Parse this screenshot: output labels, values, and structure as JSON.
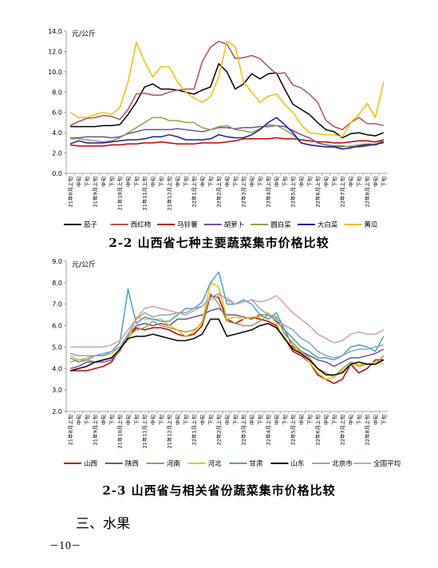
{
  "charts_meta": {
    "chart1_caption": "2-2 山西省七种主要蔬菜集市价格比较",
    "chart2_caption": "2-3 山西省与相关省份蔬菜集市价格比较"
  },
  "section_heading": "三、水果",
  "page_number": "－10－",
  "chart_data": [
    {
      "type": "line",
      "title": "",
      "ylabel": "元/公斤",
      "ylim": [
        0,
        14
      ],
      "yticks": [
        "0.0",
        "2.0",
        "4.0",
        "6.0",
        "8.0",
        "10.0",
        "12.0",
        "14.0"
      ],
      "x_tick_labels": [
        "21年8月上旬",
        "中旬",
        "下旬",
        "21年9月上旬",
        "中旬",
        "下旬",
        "21年10月上旬",
        "中旬",
        "下旬",
        "21年11月上旬",
        "中旬",
        "下旬",
        "21年12月上旬",
        "中旬",
        "下旬",
        "22年1月上旬",
        "中旬",
        "下旬",
        "22年2月上旬",
        "中旬",
        "下旬",
        "22年3月上旬",
        "中旬",
        "下旬",
        "22年4月上旬",
        "中旬",
        "下旬",
        "22年5月上旬",
        "中旬",
        "下旬",
        "22年6月上旬",
        "中旬",
        "下旬",
        "22年7月上旬",
        "中旬",
        "下旬",
        "22年8月上旬",
        "中旬",
        "下旬"
      ],
      "legend_position": "bottom",
      "series": [
        {
          "name": "茄子",
          "color": "#000000",
          "values": [
            4.6,
            4.6,
            4.6,
            4.6,
            4.7,
            4.7,
            4.8,
            5.8,
            7.0,
            8.5,
            8.8,
            8.3,
            8.3,
            8.2,
            8.0,
            7.8,
            8.2,
            8.5,
            10.8,
            10.0,
            8.3,
            8.8,
            9.8,
            9.3,
            9.8,
            9.9,
            8.3,
            6.8,
            6.3,
            5.8,
            5.0,
            4.3,
            4.1,
            3.5,
            3.9,
            4.0,
            3.8,
            3.7,
            4.0
          ]
        },
        {
          "name": "西红柿",
          "color": "#b05050",
          "values": [
            4.7,
            5.1,
            5.4,
            5.5,
            5.7,
            5.6,
            5.3,
            6.3,
            7.8,
            7.9,
            7.7,
            7.7,
            8.0,
            8.2,
            8.3,
            8.3,
            11.0,
            12.4,
            13.0,
            12.7,
            11.3,
            11.4,
            11.6,
            11.3,
            10.5,
            9.8,
            9.9,
            8.7,
            8.4,
            7.8,
            7.0,
            5.2,
            4.6,
            4.3,
            5.0,
            5.5,
            4.9,
            4.9,
            4.7
          ]
        },
        {
          "name": "马铃薯",
          "color": "#c00000",
          "values": [
            2.8,
            2.7,
            2.7,
            2.7,
            2.7,
            2.8,
            2.8,
            2.9,
            2.9,
            3.0,
            3.0,
            3.1,
            3.0,
            2.9,
            2.9,
            2.9,
            3.0,
            3.0,
            3.0,
            3.1,
            3.2,
            3.4,
            3.4,
            3.4,
            3.4,
            3.5,
            3.4,
            3.4,
            3.3,
            3.2,
            3.1,
            3.1,
            3.0,
            3.0,
            3.1,
            3.2,
            3.2,
            3.1,
            3.3
          ]
        },
        {
          "name": "胡萝卜",
          "color": "#7050a0",
          "values": [
            3.5,
            3.5,
            3.6,
            3.6,
            3.6,
            3.5,
            3.6,
            3.9,
            4.1,
            4.3,
            4.3,
            4.3,
            4.3,
            4.4,
            4.3,
            4.2,
            4.1,
            4.3,
            4.5,
            4.5,
            4.4,
            4.5,
            4.5,
            4.6,
            4.6,
            4.7,
            4.6,
            4.2,
            3.8,
            3.5,
            3.0,
            2.8,
            2.7,
            2.7,
            2.6,
            2.6,
            2.7,
            2.9,
            3.0
          ]
        },
        {
          "name": "圆白菜",
          "color": "#90a050",
          "values": [
            3.4,
            3.4,
            3.3,
            3.2,
            3.1,
            3.2,
            3.5,
            4.0,
            4.5,
            5.0,
            5.5,
            5.5,
            5.2,
            5.2,
            5.0,
            5.0,
            4.5,
            4.3,
            4.6,
            4.7,
            4.3,
            4.2,
            4.0,
            4.4,
            4.8,
            4.7,
            4.3,
            3.8,
            3.0,
            2.8,
            2.7,
            2.6,
            2.6,
            2.6,
            2.7,
            2.8,
            2.9,
            2.9,
            3.2
          ]
        },
        {
          "name": "大白菜",
          "color": "#1a1aa0",
          "values": [
            2.9,
            3.2,
            3.0,
            3.0,
            3.0,
            3.1,
            3.2,
            3.3,
            3.3,
            3.4,
            3.6,
            3.6,
            3.8,
            3.6,
            3.3,
            3.3,
            3.3,
            3.4,
            3.8,
            3.6,
            3.5,
            3.5,
            3.8,
            4.3,
            5.0,
            5.5,
            4.8,
            4.0,
            3.0,
            2.8,
            2.7,
            2.6,
            2.6,
            2.4,
            2.5,
            2.7,
            2.8,
            2.8,
            3.1
          ]
        },
        {
          "name": "黄瓜",
          "color": "#f0c000",
          "values": [
            6.0,
            5.5,
            5.5,
            5.8,
            6.0,
            5.8,
            6.5,
            9.0,
            12.9,
            11.0,
            9.5,
            10.5,
            10.5,
            9.0,
            8.0,
            7.4,
            7.0,
            7.5,
            9.5,
            13.0,
            12.5,
            9.0,
            8.0,
            7.0,
            7.6,
            7.8,
            6.8,
            6.0,
            4.8,
            4.0,
            3.9,
            3.8,
            3.8,
            3.6,
            5.0,
            5.8,
            6.9,
            5.5,
            9.0
          ]
        }
      ]
    },
    {
      "type": "line",
      "title": "",
      "ylabel": "元/公斤",
      "ylim": [
        2,
        9
      ],
      "yticks": [
        "2.0",
        "3.0",
        "4.0",
        "5.0",
        "6.0",
        "7.0",
        "8.0",
        "9.0"
      ],
      "x_tick_labels": [
        "21年8月上旬",
        "中旬",
        "下旬",
        "21年9月上旬",
        "中旬",
        "下旬",
        "21年10月上旬",
        "中旬",
        "下旬",
        "21年11月上旬",
        "中旬",
        "下旬",
        "21年12月上旬",
        "中旬",
        "下旬",
        "22年1月上旬",
        "中旬",
        "下旬",
        "22年2月上旬",
        "中旬",
        "下旬",
        "22年3月上旬",
        "中旬",
        "下旬",
        "22年4月上旬",
        "中旬",
        "下旬",
        "22年5月上旬",
        "中旬",
        "下旬",
        "22年6月上旬",
        "中旬",
        "下旬",
        "22年7月上旬",
        "中旬",
        "下旬",
        "22年8月上旬",
        "中旬",
        "下旬"
      ],
      "legend_position": "bottom",
      "series": [
        {
          "name": "山西",
          "color": "#c00000",
          "values": [
            3.9,
            3.9,
            3.9,
            4.0,
            4.1,
            4.3,
            4.9,
            5.5,
            5.9,
            5.8,
            5.9,
            5.9,
            5.8,
            5.6,
            5.5,
            5.6,
            6.0,
            7.4,
            7.3,
            6.3,
            6.1,
            6.3,
            6.4,
            6.3,
            6.2,
            6.0,
            5.4,
            4.8,
            4.6,
            4.3,
            3.7,
            3.5,
            3.3,
            3.5,
            4.2,
            3.8,
            4.0,
            4.4,
            4.4
          ]
        },
        {
          "name": "陕西",
          "color": "#7050a0",
          "values": [
            4.0,
            4.1,
            4.3,
            4.3,
            4.3,
            4.4,
            4.8,
            5.5,
            6.0,
            6.1,
            6.0,
            6.1,
            6.0,
            6.3,
            6.3,
            6.4,
            6.5,
            6.7,
            6.8,
            6.5,
            6.5,
            6.4,
            6.3,
            6.5,
            6.5,
            6.2,
            5.8,
            5.0,
            4.8,
            4.6,
            4.4,
            4.3,
            4.1,
            4.3,
            4.5,
            4.5,
            4.6,
            4.7,
            4.9
          ]
        },
        {
          "name": "河南",
          "color": "#90a050",
          "values": [
            4.3,
            4.4,
            4.4,
            4.3,
            4.4,
            4.5,
            4.8,
            5.5,
            5.8,
            5.9,
            6.2,
            6.0,
            5.9,
            5.8,
            5.7,
            5.8,
            6.1,
            7.5,
            7.0,
            6.2,
            6.1,
            6.0,
            6.0,
            6.2,
            6.5,
            6.4,
            5.6,
            5.2,
            4.8,
            4.5,
            4.0,
            3.8,
            3.6,
            4.0,
            4.3,
            4.1,
            4.2,
            4.2,
            4.6
          ]
        },
        {
          "name": "河北",
          "color": "#f0c000",
          "values": [
            4.6,
            4.4,
            4.5,
            4.6,
            4.6,
            4.7,
            5.0,
            5.3,
            6.4,
            6.3,
            6.3,
            6.3,
            6.0,
            5.8,
            5.5,
            5.7,
            6.2,
            8.0,
            7.8,
            6.3,
            6.4,
            6.3,
            6.4,
            6.4,
            6.6,
            6.1,
            5.3,
            5.1,
            4.7,
            4.3,
            3.8,
            3.5,
            3.6,
            3.9,
            4.2,
            4.2,
            4.2,
            4.3,
            4.2
          ]
        },
        {
          "name": "甘肃",
          "color": "#4ba0c8",
          "values": [
            4.5,
            4.3,
            4.4,
            4.6,
            4.6,
            4.8,
            5.2,
            7.7,
            6.1,
            6.4,
            6.3,
            6.2,
            6.2,
            6.5,
            6.8,
            6.8,
            7.1,
            8.0,
            8.5,
            7.0,
            7.0,
            7.2,
            7.0,
            6.5,
            6.3,
            6.6,
            5.8,
            5.4,
            5.0,
            4.8,
            4.5,
            4.5,
            4.4,
            4.6,
            5.0,
            5.1,
            5.0,
            4.8,
            5.5
          ]
        },
        {
          "name": "山东",
          "color": "#000000",
          "values": [
            3.9,
            4.0,
            4.1,
            4.3,
            4.4,
            4.5,
            4.9,
            5.4,
            5.5,
            5.5,
            5.6,
            5.5,
            5.4,
            5.3,
            5.3,
            5.4,
            5.6,
            6.3,
            6.3,
            5.5,
            5.6,
            5.7,
            5.8,
            6.0,
            6.1,
            5.9,
            5.4,
            4.9,
            4.7,
            4.4,
            4.0,
            3.7,
            3.7,
            3.8,
            4.2,
            4.3,
            4.2,
            4.2,
            4.4
          ]
        },
        {
          "name": "北京市",
          "color": "#8aa4c8",
          "values": [
            4.7,
            4.6,
            4.6,
            4.6,
            4.7,
            4.8,
            5.0,
            5.6,
            6.3,
            6.6,
            6.4,
            6.5,
            6.5,
            6.6,
            6.6,
            6.8,
            6.9,
            7.3,
            7.5,
            7.2,
            7.0,
            7.1,
            7.2,
            6.8,
            6.5,
            6.3,
            6.0,
            5.8,
            5.4,
            5.2,
            4.8,
            4.6,
            4.5,
            4.6,
            4.8,
            4.9,
            4.9,
            5.0,
            5.1
          ]
        },
        {
          "name": "全国平均",
          "color": "#d4a0a0",
          "values": [
            5.0,
            5.0,
            5.0,
            5.0,
            5.0,
            5.1,
            5.3,
            5.8,
            6.3,
            6.8,
            6.9,
            6.8,
            6.7,
            6.6,
            6.5,
            6.7,
            6.9,
            7.2,
            7.4,
            7.3,
            7.0,
            7.1,
            7.2,
            7.1,
            7.2,
            7.4,
            7.0,
            6.6,
            6.3,
            6.0,
            5.6,
            5.4,
            5.2,
            5.3,
            5.6,
            5.7,
            5.6,
            5.6,
            5.8
          ]
        }
      ]
    }
  ]
}
